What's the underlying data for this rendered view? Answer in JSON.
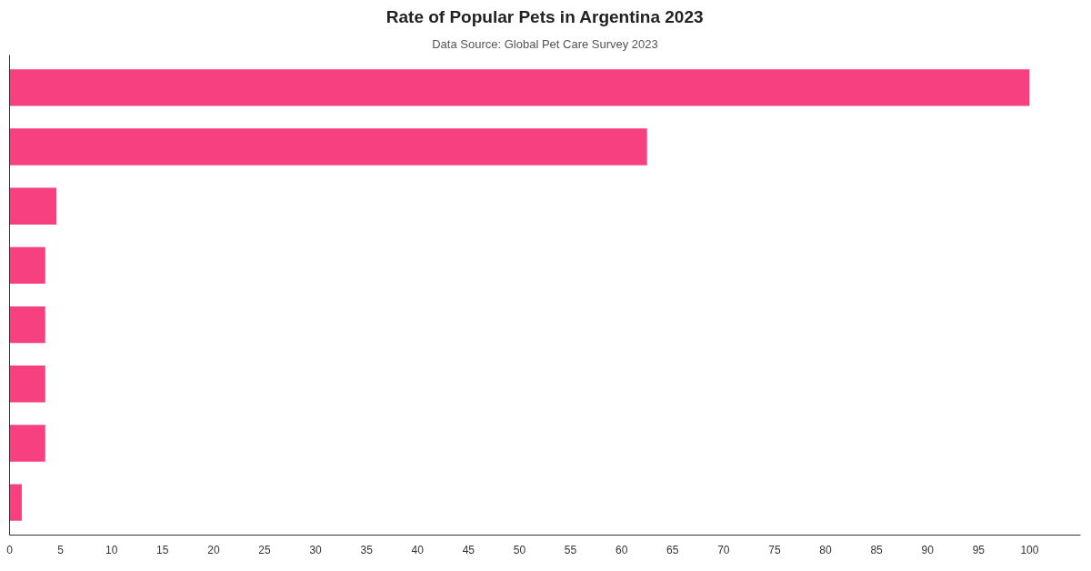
{
  "chart_data": {
    "type": "bar",
    "orientation": "horizontal",
    "title": "Rate of Popular Pets in Argentina 2023",
    "subtitle": "Data Source: Global Pet Care Survey 2023",
    "categories": [
      null,
      null,
      null,
      null,
      null,
      null,
      null,
      null
    ],
    "values": [
      100,
      62.5,
      4.6,
      3.5,
      3.5,
      3.5,
      3.5,
      1.2
    ],
    "color": "#f7407f",
    "xlim": [
      0,
      105
    ],
    "xticks": [
      0,
      5,
      10,
      15,
      20,
      25,
      30,
      35,
      40,
      45,
      50,
      55,
      60,
      65,
      70,
      75,
      80,
      85,
      90,
      95,
      100
    ],
    "grid": false
  }
}
